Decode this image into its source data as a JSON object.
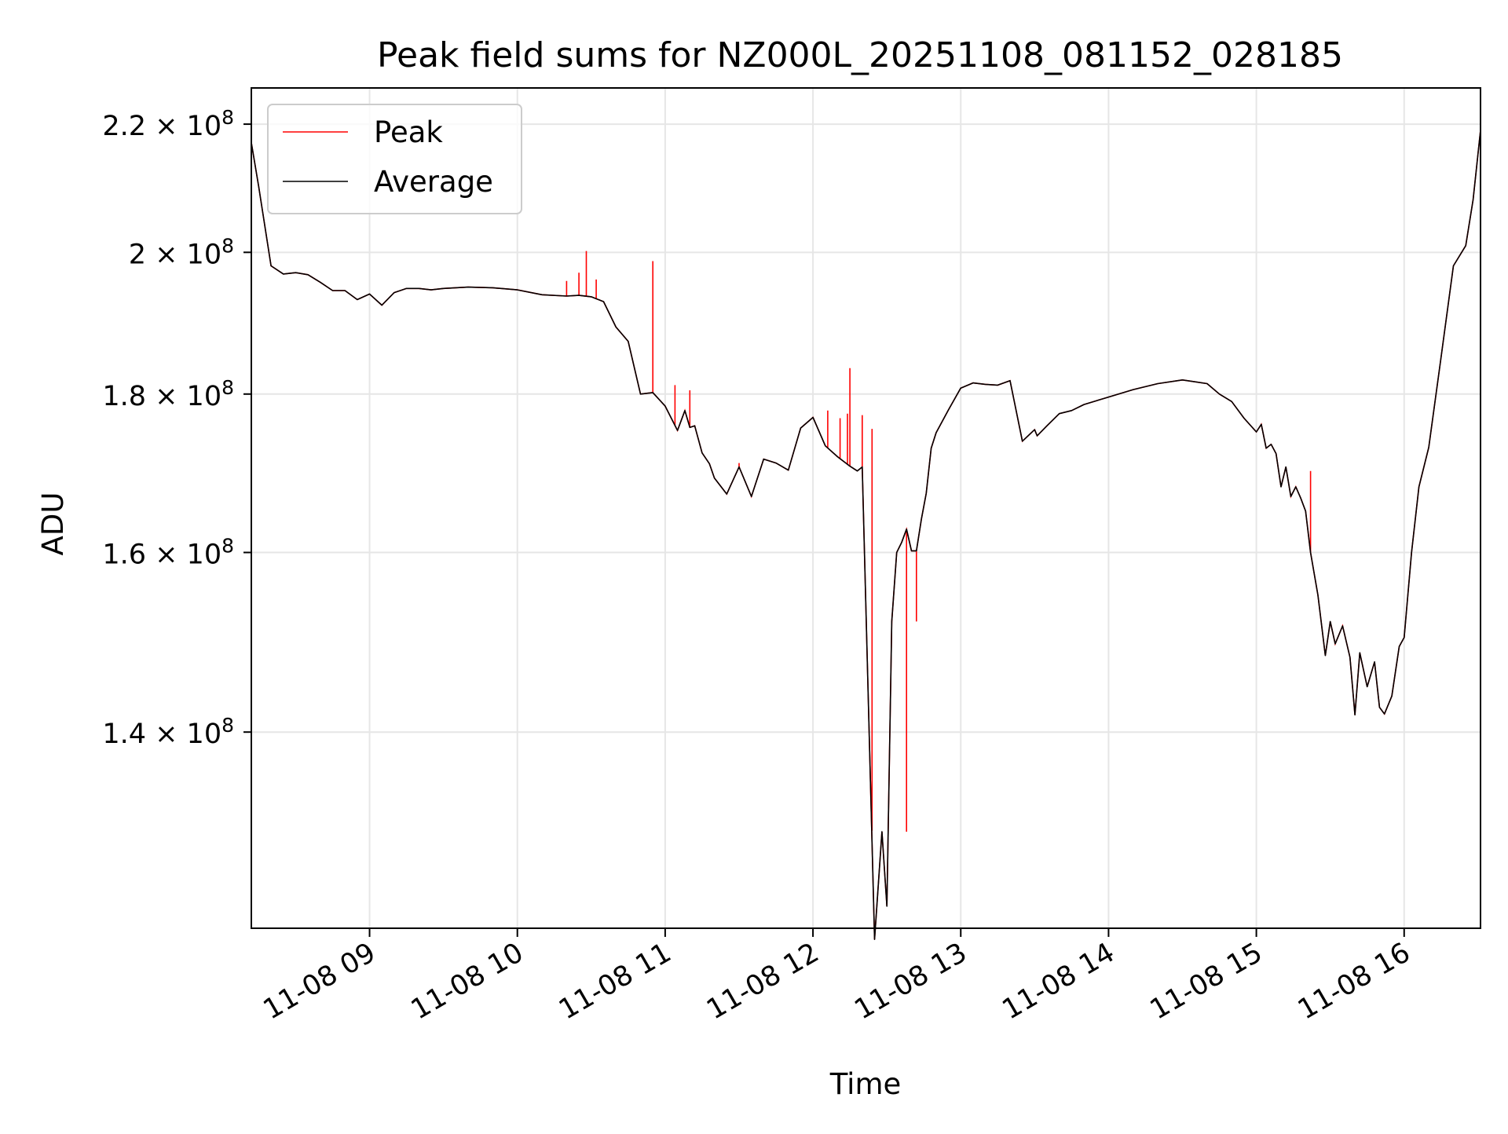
{
  "chart_data": {
    "type": "line",
    "title": "Peak field sums for NZ000L_20251108_081152_028185",
    "xlabel": "Time",
    "ylabel": "ADU",
    "yscale": "log",
    "ylim": [
      121000000,
      226000000
    ],
    "xlim": [
      "2025-11-08 08:12",
      "2025-11-08 16:31"
    ],
    "grid": true,
    "legend_position": "top-left",
    "x_ticks": [
      {
        "value": "2025-11-08 09:00",
        "label": "11-08 09"
      },
      {
        "value": "2025-11-08 10:00",
        "label": "11-08 10"
      },
      {
        "value": "2025-11-08 11:00",
        "label": "11-08 11"
      },
      {
        "value": "2025-11-08 12:00",
        "label": "11-08 12"
      },
      {
        "value": "2025-11-08 13:00",
        "label": "11-08 13"
      },
      {
        "value": "2025-11-08 14:00",
        "label": "11-08 14"
      },
      {
        "value": "2025-11-08 15:00",
        "label": "11-08 15"
      },
      {
        "value": "2025-11-08 16:00",
        "label": "11-08 16"
      }
    ],
    "y_ticks": [
      {
        "value": 140000000,
        "mantissa": "1.4",
        "exponent": "8"
      },
      {
        "value": 160000000,
        "mantissa": "1.6",
        "exponent": "8"
      },
      {
        "value": 180000000,
        "mantissa": "1.8",
        "exponent": "8"
      },
      {
        "value": 200000000,
        "mantissa": "2",
        "exponent": "8"
      },
      {
        "value": 220000000,
        "mantissa": "2.2",
        "exponent": "8"
      }
    ],
    "tick_times_sign": "×",
    "tick_base": "10",
    "series": [
      {
        "name": "Average",
        "color": "#000000",
        "x": [
          "08:12",
          "08:15",
          "08:20",
          "08:25",
          "08:30",
          "08:35",
          "08:40",
          "08:45",
          "08:50",
          "08:55",
          "09:00",
          "09:05",
          "09:10",
          "09:15",
          "09:20",
          "09:25",
          "09:30",
          "09:40",
          "09:50",
          "10:00",
          "10:10",
          "10:20",
          "10:25",
          "10:30",
          "10:35",
          "10:40",
          "10:45",
          "10:50",
          "10:55",
          "11:00",
          "11:05",
          "11:08",
          "11:10",
          "11:12",
          "11:15",
          "11:18",
          "11:20",
          "11:25",
          "11:30",
          "11:35",
          "11:40",
          "11:45",
          "11:50",
          "11:55",
          "12:00",
          "12:05",
          "12:10",
          "12:15",
          "12:18",
          "12:20",
          "12:25",
          "12:28",
          "12:30",
          "12:32",
          "12:34",
          "12:36",
          "12:38",
          "12:40",
          "12:42",
          "12:44",
          "12:46",
          "12:48",
          "12:50",
          "12:55",
          "13:00",
          "13:05",
          "13:10",
          "13:15",
          "13:20",
          "13:25",
          "13:30",
          "13:31",
          "13:35",
          "13:40",
          "13:45",
          "13:50",
          "14:00",
          "14:10",
          "14:20",
          "14:30",
          "14:40",
          "14:45",
          "14:50",
          "14:55",
          "15:00",
          "15:02",
          "15:04",
          "15:06",
          "15:08",
          "15:10",
          "15:12",
          "15:14",
          "15:16",
          "15:18",
          "15:20",
          "15:22",
          "15:25",
          "15:28",
          "15:30",
          "15:32",
          "15:35",
          "15:38",
          "15:40",
          "15:42",
          "15:45",
          "15:48",
          "15:50",
          "15:52",
          "15:55",
          "15:58",
          "16:00",
          "16:03",
          "16:06",
          "16:10",
          "16:15",
          "16:20",
          "16:25",
          "16:28",
          "16:31"
        ],
        "values": [
          217000000,
          210000000,
          198000000,
          196800000,
          197000000,
          196700000,
          195600000,
          194400000,
          194400000,
          193100000,
          193900000,
          192300000,
          194100000,
          194700000,
          194700000,
          194500000,
          194700000,
          194900000,
          194800000,
          194500000,
          193800000,
          193600000,
          193700000,
          193500000,
          192800000,
          189200000,
          187200000,
          180000000,
          180200000,
          178400000,
          175200000,
          177800000,
          175600000,
          175800000,
          172300000,
          170900000,
          169100000,
          167100000,
          170500000,
          166800000,
          171500000,
          171000000,
          170100000,
          175500000,
          176900000,
          173200000,
          171800000,
          170600000,
          170000000,
          170500000,
          120000000,
          130000000,
          123000000,
          152000000,
          160000000,
          161200000,
          162800000,
          160200000,
          160200000,
          164000000,
          167200000,
          172900000,
          174900000,
          177900000,
          180800000,
          181500000,
          181300000,
          181200000,
          181800000,
          173800000,
          175300000,
          174500000,
          175800000,
          177400000,
          177800000,
          178600000,
          179600000,
          180600000,
          181400000,
          181900000,
          181400000,
          180000000,
          179000000,
          176800000,
          175000000,
          176000000,
          172900000,
          173400000,
          172200000,
          168000000,
          170500000,
          166800000,
          168000000,
          166600000,
          165000000,
          160000000,
          155000000,
          148200000,
          152000000,
          149500000,
          151500000,
          148000000,
          141800000,
          148500000,
          144800000,
          147500000,
          142600000,
          141900000,
          143800000,
          149200000,
          150200000,
          160000000,
          168000000,
          173000000,
          185000000,
          198000000,
          201000000,
          208000000,
          219000000
        ]
      },
      {
        "name": "Peak",
        "color": "#ff0000",
        "spikes": [
          {
            "x": "10:20",
            "value": 195800000
          },
          {
            "x": "10:25",
            "value": 197000000
          },
          {
            "x": "10:28",
            "value": 200200000
          },
          {
            "x": "10:32",
            "value": 196000000
          },
          {
            "x": "10:55",
            "value": 198700000
          },
          {
            "x": "11:04",
            "value": 181200000
          },
          {
            "x": "11:10",
            "value": 180500000
          },
          {
            "x": "11:30",
            "value": 171000000
          },
          {
            "x": "12:06",
            "value": 177800000
          },
          {
            "x": "12:11",
            "value": 176800000
          },
          {
            "x": "12:14",
            "value": 177400000
          },
          {
            "x": "12:15",
            "value": 183500000
          },
          {
            "x": "12:20",
            "value": 177200000
          },
          {
            "x": "12:24",
            "value": 175400000
          },
          {
            "x": "12:38",
            "value": 130000000
          },
          {
            "x": "12:42",
            "value": 152000000
          },
          {
            "x": "15:22",
            "value": 170000000
          }
        ]
      }
    ]
  }
}
